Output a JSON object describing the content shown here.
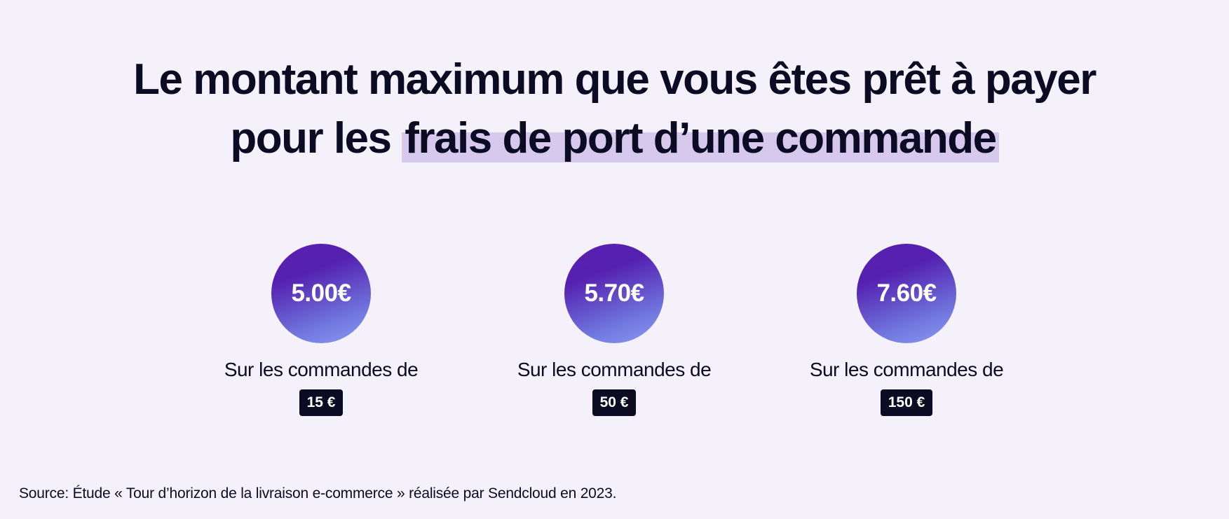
{
  "title": {
    "line1": "Le montant maximum que vous êtes prêt à payer",
    "line2_plain": "pour les ",
    "line2_highlight": "frais de port d’une commande"
  },
  "stats": [
    {
      "amount": "5.00€",
      "label": "Sur les commandes de",
      "order_value": "15 €"
    },
    {
      "amount": "5.70€",
      "label": "Sur les commandes de",
      "order_value": "50 €"
    },
    {
      "amount": "7.60€",
      "label": "Sur les commandes de",
      "order_value": "150 €"
    }
  ],
  "source": "Source: Étude « Tour d’horizon de la livraison e-commerce » réalisée par Sendcloud en 2023.",
  "colors": {
    "background": "#f4f1fb",
    "highlight": "#d7c9ee",
    "circle_start": "#5a1fb0",
    "circle_end": "#8c9af2",
    "badge": "#0b0b24"
  }
}
